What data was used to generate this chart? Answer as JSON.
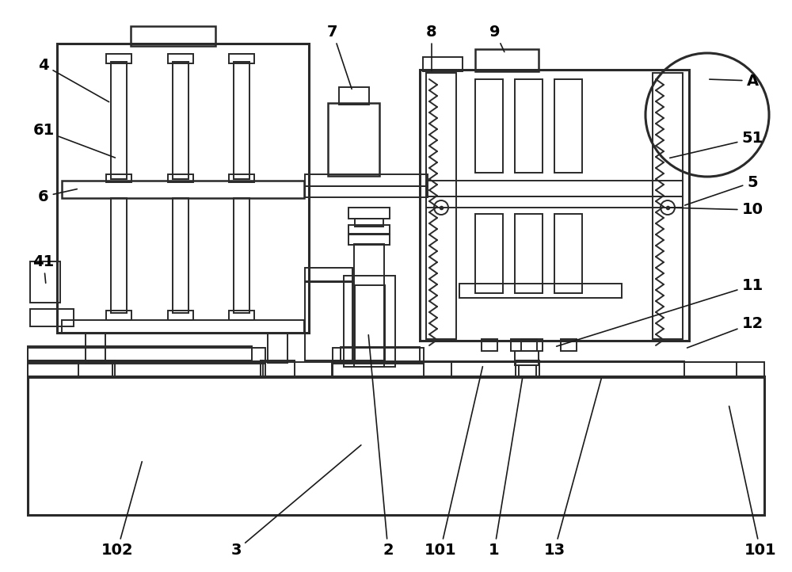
{
  "bg": "#ffffff",
  "lc": "#2a2a2a",
  "lw": 1.4,
  "mlw": 1.8,
  "tlw": 2.2,
  "fs": 14
}
